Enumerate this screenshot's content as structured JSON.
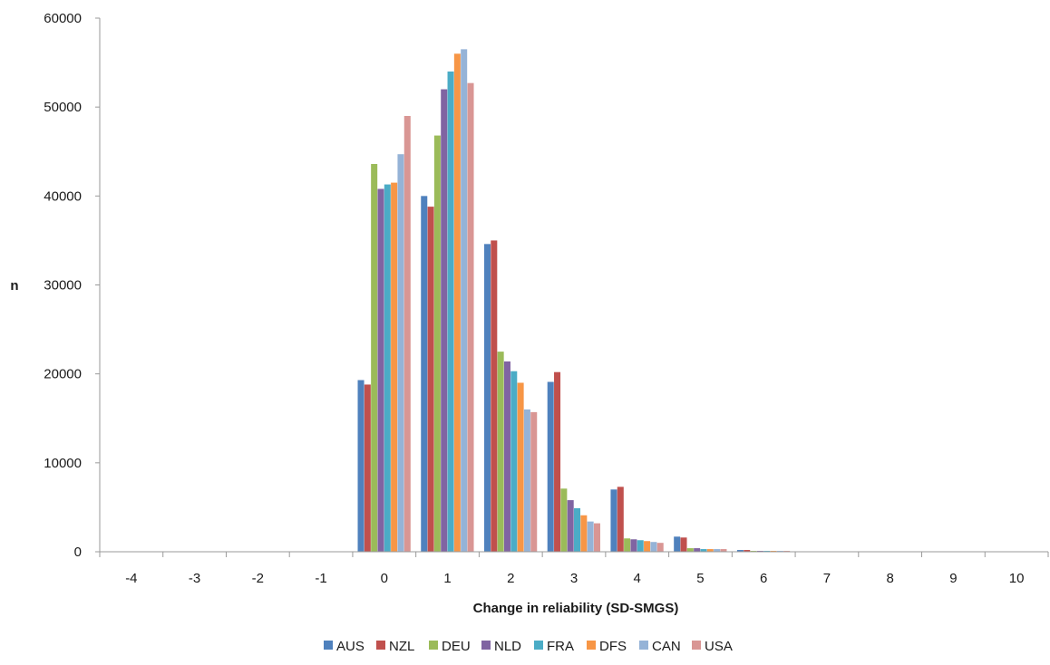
{
  "chart_data": {
    "type": "bar",
    "title": "",
    "xlabel": "Change in reliability (SD-SMGS)",
    "ylabel": "n",
    "ylim": [
      0,
      60000
    ],
    "yticks": [
      0,
      10000,
      20000,
      30000,
      40000,
      50000,
      60000
    ],
    "grid": false,
    "legend_position": "bottom",
    "categories": [
      "-4",
      "-3",
      "-2",
      "-1",
      "0",
      "1",
      "2",
      "3",
      "4",
      "5",
      "6",
      "7",
      "8",
      "9",
      "10"
    ],
    "series": [
      {
        "name": "AUS",
        "color": "#4F81BD",
        "values": [
          0,
          0,
          0,
          0,
          19300,
          40000,
          34600,
          19100,
          7000,
          1700,
          200,
          0,
          0,
          0,
          0
        ]
      },
      {
        "name": "NZL",
        "color": "#C0504D",
        "values": [
          0,
          0,
          0,
          0,
          18800,
          38800,
          35000,
          20200,
          7300,
          1600,
          200,
          0,
          0,
          0,
          0
        ]
      },
      {
        "name": "DEU",
        "color": "#9BBB59",
        "values": [
          0,
          0,
          0,
          0,
          43600,
          46800,
          22500,
          7100,
          1500,
          400,
          100,
          0,
          0,
          0,
          0
        ]
      },
      {
        "name": "NLD",
        "color": "#8064A2",
        "values": [
          0,
          0,
          0,
          0,
          40800,
          52000,
          21400,
          5800,
          1400,
          400,
          100,
          0,
          0,
          0,
          0
        ]
      },
      {
        "name": "FRA",
        "color": "#4BACC6",
        "values": [
          0,
          0,
          0,
          0,
          41300,
          54000,
          20300,
          4900,
          1300,
          300,
          100,
          0,
          0,
          0,
          0
        ]
      },
      {
        "name": "DFS",
        "color": "#F79646",
        "values": [
          0,
          0,
          0,
          0,
          41500,
          56000,
          19000,
          4100,
          1200,
          300,
          100,
          0,
          0,
          0,
          0
        ]
      },
      {
        "name": "CAN",
        "color": "#95B3D7",
        "values": [
          0,
          0,
          0,
          0,
          44700,
          56500,
          16000,
          3400,
          1100,
          300,
          100,
          0,
          0,
          0,
          0
        ]
      },
      {
        "name": "USA",
        "color": "#D99694",
        "values": [
          0,
          0,
          0,
          0,
          49000,
          52700,
          15700,
          3200,
          1000,
          300,
          100,
          0,
          0,
          0,
          0
        ]
      }
    ]
  }
}
